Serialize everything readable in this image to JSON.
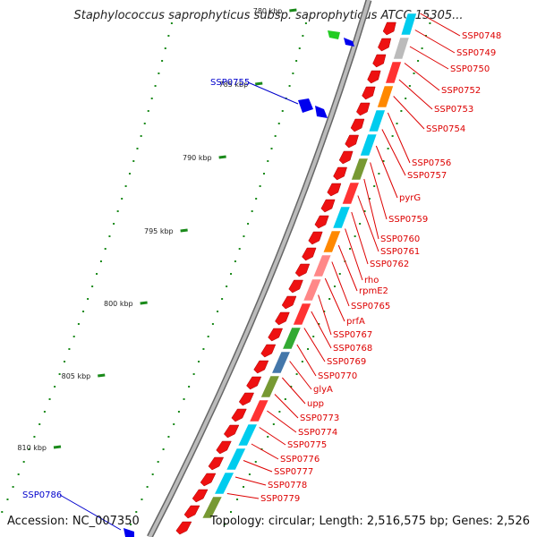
{
  "title": "Staphylococcus saprophyticus subsp. saprophyticus ATCC 15305...",
  "footer": {
    "accession": "Accession: NC_007350",
    "summary": "Topology: circular; Length: 2,516,575 bp; Genes: 2,526"
  },
  "colors": {
    "backbone": "#888888",
    "tick": "#1a8a1a",
    "gene_red": "#ee1111",
    "blue_label": "#0000cc",
    "red_label": "#dd0000"
  },
  "scale_labels": [
    "780 kbp",
    "785 kbp",
    "790 kbp",
    "795 kbp",
    "800 kbp",
    "805 kbp",
    "810 kbp"
  ],
  "top_strand_labels": [
    "SSP0755",
    "SSP0786"
  ],
  "bottom_strand_labels": [
    "SSP0748",
    "SSP0749",
    "SSP0750",
    "SSP0752",
    "SSP0753",
    "SSP0754",
    "SSP0756",
    "SSP0757",
    "pyrG",
    "SSP0759",
    "SSP0760",
    "SSP0761",
    "SSP0762",
    "rho",
    "rpmE2",
    "SSP0765",
    "prfA",
    "SSP0767",
    "SSP0768",
    "SSP0769",
    "SSP0770",
    "glyA",
    "upp",
    "SSP0773",
    "SSP0774",
    "SSP0775",
    "SSP0776",
    "SSP0777",
    "SSP0778",
    "SSP0779"
  ]
}
